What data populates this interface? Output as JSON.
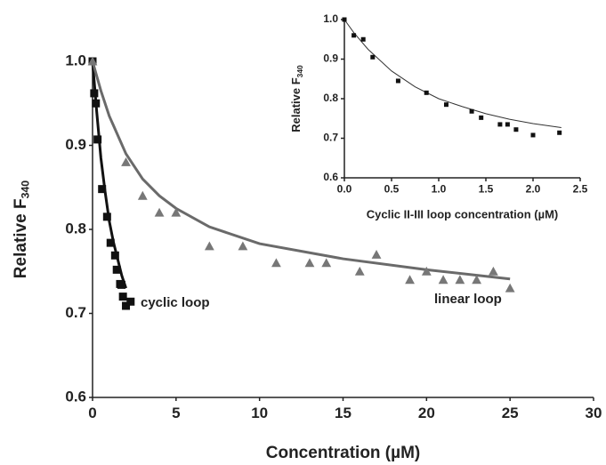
{
  "chart_data": [
    {
      "type": "scatter",
      "x_label": "Concentration (µM)",
      "y_label": "Relative F",
      "y_label_sub": "340",
      "xlim": [
        0,
        30
      ],
      "ylim": [
        0.6,
        1.0
      ],
      "xticks": [
        0,
        5,
        10,
        15,
        20,
        25,
        30
      ],
      "yticks": [
        0.6,
        0.7,
        0.8,
        0.9,
        {
          "value": 1,
          "label": "1.0"
        }
      ],
      "grid": false,
      "series": [
        {
          "name": "cyclic loop",
          "color": "#111111",
          "marker": "square",
          "x": [
            0,
            0.1,
            0.2,
            0.3,
            0.57,
            0.87,
            1.08,
            1.35,
            1.45,
            1.65,
            1.73,
            1.82,
            2.0,
            2.28
          ],
          "values": [
            1.0,
            0.962,
            0.95,
            0.907,
            0.848,
            0.815,
            0.784,
            0.769,
            0.752,
            0.735,
            0.734,
            0.72,
            0.709,
            0.714
          ],
          "fit": {
            "color": "#111111",
            "x": [
              0,
              0.25,
              0.5,
              0.75,
              1,
              1.25,
              1.5,
              1.75,
              2
            ],
            "values": [
              1.0,
              0.94,
              0.885,
              0.845,
              0.81,
              0.785,
              0.765,
              0.745,
              0.73
            ]
          }
        },
        {
          "name": "linear loop",
          "color": "#777777",
          "marker": "triangle",
          "x": [
            0,
            2,
            3,
            4,
            5,
            7,
            9,
            11,
            13,
            14,
            16,
            17,
            19,
            20,
            21,
            22,
            23,
            24,
            25
          ],
          "values": [
            1.0,
            0.88,
            0.84,
            0.82,
            0.82,
            0.78,
            0.78,
            0.76,
            0.76,
            0.76,
            0.75,
            0.77,
            0.74,
            0.75,
            0.74,
            0.74,
            0.74,
            0.75,
            0.73
          ],
          "fit": {
            "color": "#6a6a6a",
            "x": [
              0,
              0.5,
              1,
              2,
              3,
              4,
              5,
              7,
              10,
              15,
              20,
              25
            ],
            "values": [
              1.0,
              0.965,
              0.935,
              0.89,
              0.86,
              0.84,
              0.825,
              0.803,
              0.783,
              0.765,
              0.752,
              0.741
            ]
          }
        }
      ]
    },
    {
      "type": "scatter",
      "x_label": "Cyclic II-III loop concentration (µM)",
      "y_label": "Relative F",
      "y_label_sub": "340",
      "xlim": [
        0,
        2.5
      ],
      "ylim": [
        0.6,
        1.0
      ],
      "xticks": [
        {
          "value": 0,
          "label": "0.0"
        },
        0.5,
        {
          "value": 1,
          "label": "1.0"
        },
        1.5,
        {
          "value": 2,
          "label": "2.0"
        },
        2.5
      ],
      "yticks": [
        0.6,
        0.7,
        0.8,
        0.9,
        {
          "value": 1,
          "label": "1.0"
        }
      ],
      "grid": false,
      "series": [
        {
          "color": "#111111",
          "marker": "square",
          "x": [
            0,
            0.1,
            0.2,
            0.3,
            0.57,
            0.87,
            1.08,
            1.35,
            1.45,
            1.65,
            1.73,
            1.82,
            2.0,
            2.28
          ],
          "values": [
            1.0,
            0.96,
            0.95,
            0.905,
            0.845,
            0.815,
            0.785,
            0.768,
            0.752,
            0.735,
            0.735,
            0.722,
            0.708,
            0.714
          ],
          "fit": {
            "color": "#333333",
            "x": [
              0,
              0.1,
              0.25,
              0.5,
              0.75,
              1,
              1.25,
              1.5,
              1.75,
              2,
              2.3
            ],
            "values": [
              1.0,
              0.967,
              0.925,
              0.87,
              0.83,
              0.8,
              0.78,
              0.762,
              0.748,
              0.737,
              0.727
            ]
          }
        }
      ]
    }
  ]
}
